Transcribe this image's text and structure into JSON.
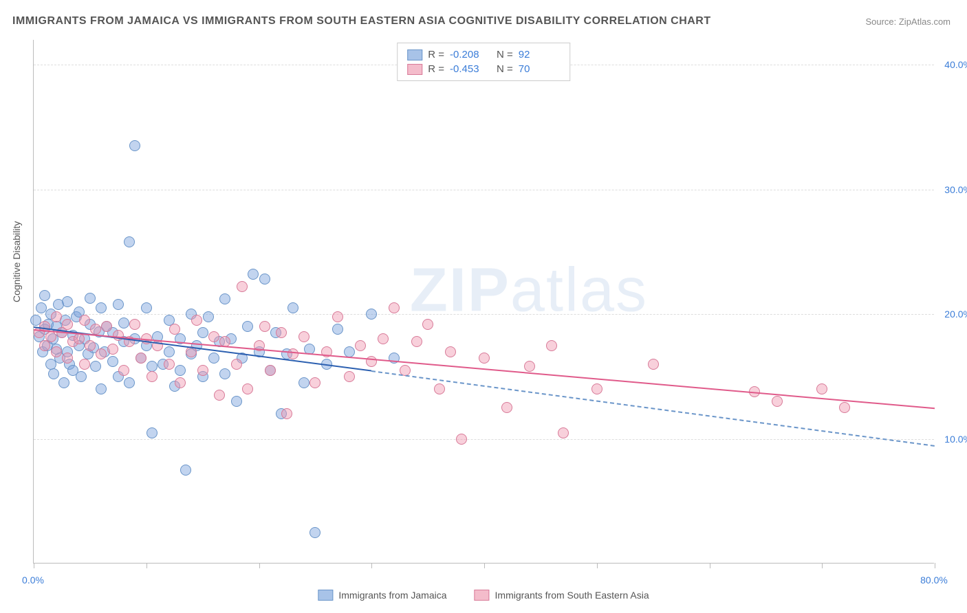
{
  "title": "IMMIGRANTS FROM JAMAICA VS IMMIGRANTS FROM SOUTH EASTERN ASIA COGNITIVE DISABILITY CORRELATION CHART",
  "source_label": "Source: ZipAtlas.com",
  "y_axis_label": "Cognitive Disability",
  "watermark": {
    "bold": "ZIP",
    "thin": "atlas"
  },
  "chart": {
    "type": "scatter",
    "xlim": [
      0,
      80
    ],
    "ylim": [
      0,
      42
    ],
    "x_ticks": [
      0,
      10,
      20,
      30,
      40,
      50,
      60,
      70,
      80
    ],
    "x_tick_labels_shown": {
      "0": "0.0%",
      "80": "80.0%"
    },
    "y_ticks": [
      10,
      20,
      30,
      40
    ],
    "y_tick_labels": [
      "10.0%",
      "20.0%",
      "30.0%",
      "40.0%"
    ],
    "background_color": "#ffffff",
    "grid_color": "#dddddd",
    "axis_color": "#bbbbbb",
    "tick_label_color": "#3b7dd8",
    "marker_size": 16,
    "marker_opacity": 0.55
  },
  "series": [
    {
      "name": "Immigrants from Jamaica",
      "color_fill": "rgba(120,160,220,0.45)",
      "color_stroke": "#6a95c9",
      "legend_swatch_fill": "#a8c3e8",
      "legend_swatch_border": "#6a95c9",
      "R": "-0.208",
      "N": "92",
      "trend": {
        "x1": 0,
        "y1": 19.0,
        "x2": 30,
        "y2": 15.5,
        "color": "#2b5fb0",
        "width": 2
      },
      "trend_extrapolate": {
        "x1": 30,
        "y1": 15.5,
        "x2": 80,
        "y2": 9.5,
        "color": "#6a95c9",
        "dash": true
      },
      "points": [
        [
          0.2,
          19.5
        ],
        [
          0.5,
          18.2
        ],
        [
          0.7,
          20.5
        ],
        [
          0.8,
          17.0
        ],
        [
          1.0,
          18.8
        ],
        [
          1.0,
          21.5
        ],
        [
          1.2,
          17.5
        ],
        [
          1.3,
          19.2
        ],
        [
          1.5,
          16.0
        ],
        [
          1.5,
          20.0
        ],
        [
          1.7,
          18.0
        ],
        [
          1.8,
          15.2
        ],
        [
          2.0,
          19.0
        ],
        [
          2.0,
          17.2
        ],
        [
          2.2,
          20.8
        ],
        [
          2.3,
          16.5
        ],
        [
          2.5,
          18.5
        ],
        [
          2.7,
          14.5
        ],
        [
          2.8,
          19.5
        ],
        [
          3.0,
          17.0
        ],
        [
          3.0,
          21.0
        ],
        [
          3.2,
          16.0
        ],
        [
          3.5,
          18.3
        ],
        [
          3.5,
          15.5
        ],
        [
          3.8,
          19.8
        ],
        [
          4.0,
          17.5
        ],
        [
          4.0,
          20.2
        ],
        [
          4.2,
          15.0
        ],
        [
          4.5,
          18.0
        ],
        [
          4.8,
          16.8
        ],
        [
          5.0,
          19.2
        ],
        [
          5.0,
          21.3
        ],
        [
          5.3,
          17.3
        ],
        [
          5.5,
          15.8
        ],
        [
          5.8,
          18.6
        ],
        [
          6.0,
          14.0
        ],
        [
          6.0,
          20.5
        ],
        [
          6.3,
          17.0
        ],
        [
          6.5,
          19.0
        ],
        [
          7.0,
          16.2
        ],
        [
          7.0,
          18.5
        ],
        [
          7.5,
          15.0
        ],
        [
          7.5,
          20.8
        ],
        [
          8.0,
          17.8
        ],
        [
          8.0,
          19.3
        ],
        [
          8.5,
          14.5
        ],
        [
          8.5,
          25.8
        ],
        [
          9.0,
          18.0
        ],
        [
          9.0,
          33.5
        ],
        [
          9.5,
          16.5
        ],
        [
          10.0,
          17.5
        ],
        [
          10.0,
          20.5
        ],
        [
          10.5,
          15.8
        ],
        [
          10.5,
          10.5
        ],
        [
          11.0,
          18.2
        ],
        [
          11.5,
          16.0
        ],
        [
          12.0,
          19.5
        ],
        [
          12.0,
          17.0
        ],
        [
          12.5,
          14.2
        ],
        [
          13.0,
          18.0
        ],
        [
          13.0,
          15.5
        ],
        [
          13.5,
          7.5
        ],
        [
          14.0,
          16.8
        ],
        [
          14.0,
          20.0
        ],
        [
          14.5,
          17.5
        ],
        [
          15.0,
          15.0
        ],
        [
          15.0,
          18.5
        ],
        [
          15.5,
          19.8
        ],
        [
          16.0,
          16.5
        ],
        [
          16.5,
          17.8
        ],
        [
          17.0,
          15.2
        ],
        [
          17.0,
          21.2
        ],
        [
          17.5,
          18.0
        ],
        [
          18.0,
          13.0
        ],
        [
          18.5,
          16.5
        ],
        [
          19.0,
          19.0
        ],
        [
          19.5,
          23.2
        ],
        [
          20.0,
          17.0
        ],
        [
          20.5,
          22.8
        ],
        [
          21.0,
          15.5
        ],
        [
          21.5,
          18.5
        ],
        [
          22.0,
          12.0
        ],
        [
          22.5,
          16.8
        ],
        [
          23.0,
          20.5
        ],
        [
          24.0,
          14.5
        ],
        [
          24.5,
          17.2
        ],
        [
          25.0,
          2.5
        ],
        [
          26.0,
          16.0
        ],
        [
          27.0,
          18.8
        ],
        [
          28.0,
          17.0
        ],
        [
          30.0,
          20.0
        ],
        [
          32.0,
          16.5
        ]
      ]
    },
    {
      "name": "Immigrants from South Eastern Asia",
      "color_fill": "rgba(240,150,175,0.45)",
      "color_stroke": "#d87a98",
      "legend_swatch_fill": "#f4bccb",
      "legend_swatch_border": "#d87a98",
      "R": "-0.453",
      "N": "70",
      "trend": {
        "x1": 0,
        "y1": 18.8,
        "x2": 80,
        "y2": 12.5,
        "color": "#e05a8a",
        "width": 2
      },
      "points": [
        [
          0.5,
          18.5
        ],
        [
          1.0,
          19.0
        ],
        [
          1.0,
          17.5
        ],
        [
          1.5,
          18.2
        ],
        [
          2.0,
          19.8
        ],
        [
          2.0,
          17.0
        ],
        [
          2.5,
          18.5
        ],
        [
          3.0,
          16.5
        ],
        [
          3.0,
          19.2
        ],
        [
          3.5,
          17.8
        ],
        [
          4.0,
          18.0
        ],
        [
          4.5,
          16.0
        ],
        [
          4.5,
          19.5
        ],
        [
          5.0,
          17.5
        ],
        [
          5.5,
          18.8
        ],
        [
          6.0,
          16.8
        ],
        [
          6.5,
          19.0
        ],
        [
          7.0,
          17.2
        ],
        [
          7.5,
          18.3
        ],
        [
          8.0,
          15.5
        ],
        [
          8.5,
          17.8
        ],
        [
          9.0,
          19.2
        ],
        [
          9.5,
          16.5
        ],
        [
          10.0,
          18.0
        ],
        [
          10.5,
          15.0
        ],
        [
          11.0,
          17.5
        ],
        [
          12.0,
          16.0
        ],
        [
          12.5,
          18.8
        ],
        [
          13.0,
          14.5
        ],
        [
          14.0,
          17.0
        ],
        [
          14.5,
          19.5
        ],
        [
          15.0,
          15.5
        ],
        [
          16.0,
          18.2
        ],
        [
          16.5,
          13.5
        ],
        [
          17.0,
          17.8
        ],
        [
          18.0,
          16.0
        ],
        [
          18.5,
          22.2
        ],
        [
          19.0,
          14.0
        ],
        [
          20.0,
          17.5
        ],
        [
          20.5,
          19.0
        ],
        [
          21.0,
          15.5
        ],
        [
          22.0,
          18.5
        ],
        [
          22.5,
          12.0
        ],
        [
          23.0,
          16.8
        ],
        [
          24.0,
          18.2
        ],
        [
          25.0,
          14.5
        ],
        [
          26.0,
          17.0
        ],
        [
          27.0,
          19.8
        ],
        [
          28.0,
          15.0
        ],
        [
          29.0,
          17.5
        ],
        [
          30.0,
          16.2
        ],
        [
          31.0,
          18.0
        ],
        [
          32.0,
          20.5
        ],
        [
          33.0,
          15.5
        ],
        [
          34.0,
          17.8
        ],
        [
          35.0,
          19.2
        ],
        [
          36.0,
          14.0
        ],
        [
          37.0,
          17.0
        ],
        [
          38.0,
          10.0
        ],
        [
          40.0,
          16.5
        ],
        [
          42.0,
          12.5
        ],
        [
          44.0,
          15.8
        ],
        [
          46.0,
          17.5
        ],
        [
          47.0,
          10.5
        ],
        [
          50.0,
          14.0
        ],
        [
          55.0,
          16.0
        ],
        [
          64.0,
          13.8
        ],
        [
          66.0,
          13.0
        ],
        [
          70.0,
          14.0
        ],
        [
          72.0,
          12.5
        ]
      ]
    }
  ],
  "legend_top": {
    "rows": [
      {
        "series_idx": 0,
        "R_label": "R =",
        "N_label": "N ="
      },
      {
        "series_idx": 1,
        "R_label": "R =",
        "N_label": "N ="
      }
    ]
  },
  "legend_bottom": {
    "items": [
      0,
      1
    ]
  }
}
